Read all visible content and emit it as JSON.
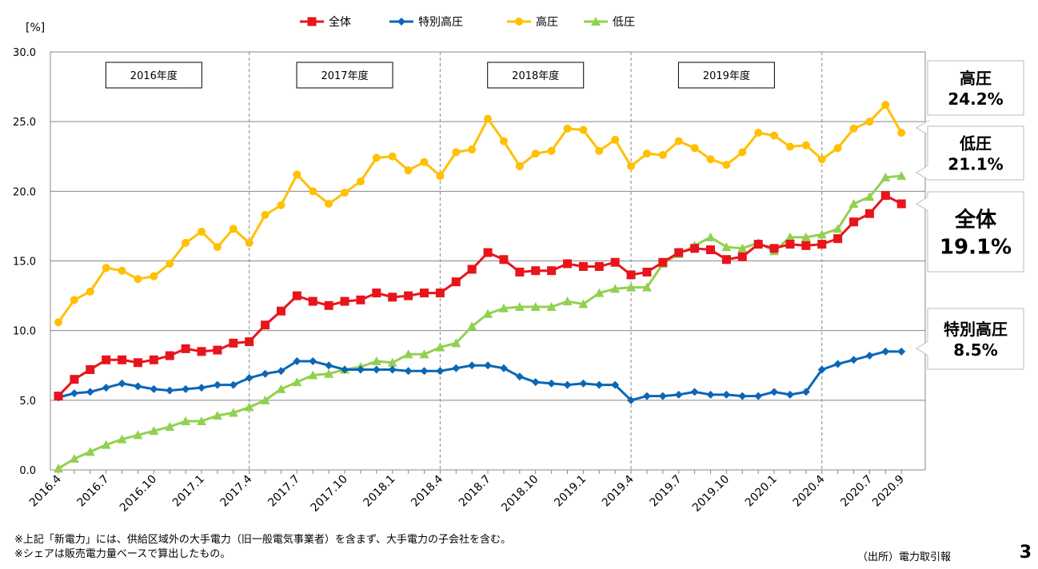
{
  "chart_data": {
    "type": "line",
    "ylabel": "[%]",
    "ylim": [
      0,
      30
    ],
    "yticks": [
      "0.0",
      "5.0",
      "10.0",
      "15.0",
      "20.0",
      "25.0",
      "30.0"
    ],
    "grid": true,
    "legend_position": "top",
    "x": [
      "2016.4",
      "2016.5",
      "2016.6",
      "2016.7",
      "2016.8",
      "2016.9",
      "2016.10",
      "2016.11",
      "2016.12",
      "2017.1",
      "2017.2",
      "2017.3",
      "2017.4",
      "2017.5",
      "2017.6",
      "2017.7",
      "2017.8",
      "2017.9",
      "2017.10",
      "2017.11",
      "2017.12",
      "2018.1",
      "2018.2",
      "2018.3",
      "2018.4",
      "2018.5",
      "2018.6",
      "2018.7",
      "2018.8",
      "2018.9",
      "2018.10",
      "2018.11",
      "2018.12",
      "2019.1",
      "2019.2",
      "2019.3",
      "2019.4",
      "2019.5",
      "2019.6",
      "2019.7",
      "2019.8",
      "2019.9",
      "2019.10",
      "2019.11",
      "2019.12",
      "2020.1",
      "2020.2",
      "2020.3",
      "2020.4",
      "2020.5",
      "2020.6",
      "2020.7",
      "2020.8",
      "2020.9"
    ],
    "xtick_labels": [
      "2016.4",
      "2016.7",
      "2016.10",
      "2017.1",
      "2017.4",
      "2017.7",
      "2017.10",
      "2018.1",
      "2018.4",
      "2018.7",
      "2018.10",
      "2019.1",
      "2019.4",
      "2019.7",
      "2019.10",
      "2020.1",
      "2020.4",
      "2020.7",
      "2020.9"
    ],
    "period_labels": [
      "2016年度",
      "2017年度",
      "2018年度",
      "2019年度"
    ],
    "series": [
      {
        "name": "全体",
        "color": "#e8141c",
        "marker": "square",
        "values": [
          5.3,
          6.5,
          7.2,
          7.9,
          7.9,
          7.7,
          7.9,
          8.2,
          8.7,
          8.5,
          8.6,
          9.1,
          9.2,
          10.4,
          11.4,
          12.5,
          12.1,
          11.8,
          12.1,
          12.2,
          12.7,
          12.4,
          12.5,
          12.7,
          12.7,
          13.5,
          14.4,
          15.6,
          15.1,
          14.2,
          14.3,
          14.3,
          14.8,
          14.6,
          14.6,
          14.9,
          14.0,
          14.2,
          14.9,
          15.6,
          15.9,
          15.8,
          15.1,
          15.3,
          16.2,
          15.9,
          16.2,
          16.1,
          16.2,
          16.6,
          17.8,
          18.4,
          19.7,
          19.1
        ]
      },
      {
        "name": "特別高圧",
        "color": "#0b67b5",
        "marker": "diamond",
        "values": [
          5.2,
          5.5,
          5.6,
          5.9,
          6.2,
          6.0,
          5.8,
          5.7,
          5.8,
          5.9,
          6.1,
          6.1,
          6.6,
          6.9,
          7.1,
          7.8,
          7.8,
          7.5,
          7.2,
          7.2,
          7.2,
          7.2,
          7.1,
          7.1,
          7.1,
          7.3,
          7.5,
          7.5,
          7.3,
          6.7,
          6.3,
          6.2,
          6.1,
          6.2,
          6.1,
          6.1,
          5.0,
          5.3,
          5.3,
          5.4,
          5.6,
          5.4,
          5.4,
          5.3,
          5.3,
          5.6,
          5.4,
          5.6,
          7.2,
          7.6,
          7.9,
          8.2,
          8.5,
          8.5
        ]
      },
      {
        "name": "高圧",
        "color": "#ffc000",
        "marker": "circle",
        "values": [
          10.6,
          12.2,
          12.8,
          14.5,
          14.3,
          13.7,
          13.9,
          14.8,
          16.3,
          17.1,
          16.0,
          17.3,
          16.3,
          18.3,
          19.0,
          21.2,
          20.0,
          19.1,
          19.9,
          20.7,
          22.4,
          22.5,
          21.5,
          22.1,
          21.1,
          22.8,
          23.0,
          25.2,
          23.6,
          21.8,
          22.7,
          22.9,
          24.5,
          24.4,
          22.9,
          23.7,
          21.8,
          22.7,
          22.6,
          23.6,
          23.1,
          22.3,
          21.9,
          22.8,
          24.2,
          24.0,
          23.2,
          23.3,
          22.3,
          23.1,
          24.5,
          25.0,
          26.2,
          24.2
        ]
      },
      {
        "name": "低圧",
        "color": "#92d050",
        "marker": "triangle",
        "values": [
          0.1,
          0.8,
          1.3,
          1.8,
          2.2,
          2.5,
          2.8,
          3.1,
          3.5,
          3.5,
          3.9,
          4.1,
          4.5,
          5.0,
          5.8,
          6.3,
          6.8,
          6.9,
          7.2,
          7.4,
          7.8,
          7.7,
          8.3,
          8.3,
          8.8,
          9.1,
          10.3,
          11.2,
          11.6,
          11.7,
          11.7,
          11.7,
          12.1,
          11.9,
          12.7,
          13.0,
          13.1,
          13.1,
          14.8,
          15.5,
          16.1,
          16.7,
          16.0,
          15.9,
          16.3,
          15.7,
          16.7,
          16.7,
          16.9,
          17.3,
          19.1,
          19.6,
          21.0,
          21.1
        ]
      }
    ],
    "callouts": [
      {
        "name": "高圧",
        "value": "24.2%"
      },
      {
        "name": "低圧",
        "value": "21.1%"
      },
      {
        "name": "全体",
        "value": "19.1%"
      },
      {
        "name": "特別高圧",
        "value": "8.5%"
      }
    ]
  },
  "notes": {
    "line1": "※上記「新電力」には、供給区域外の大手電力（旧一般電気事業者）を含まず、大手電力の子会社を含む。",
    "line2": "※シェアは販売電力量ベースで算出したもの。",
    "source": "（出所）電力取引報",
    "page_number": "3"
  }
}
